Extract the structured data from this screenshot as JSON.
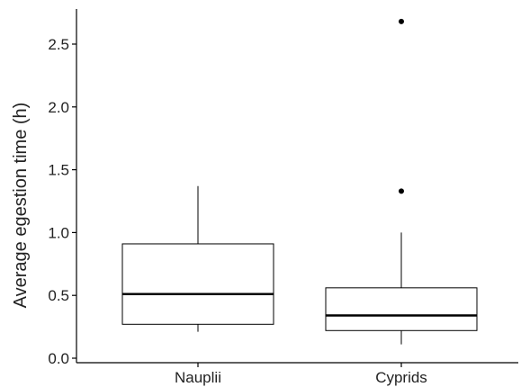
{
  "chart_data": {
    "type": "boxplot",
    "title": "",
    "xlabel": "",
    "ylabel": "Average egestion time (h)",
    "ylim": [
      0,
      2.8
    ],
    "yticks": [
      0.0,
      0.5,
      1.0,
      1.5,
      2.0,
      2.5
    ],
    "ytick_labels": [
      "0.0",
      "0.5",
      "1.0",
      "1.5",
      "2.0",
      "2.5"
    ],
    "grid": false,
    "categories": [
      "Nauplii",
      "Cyprids"
    ],
    "boxes": [
      {
        "category": "Nauplii",
        "whisker_low": 0.21,
        "q1": 0.27,
        "median": 0.51,
        "q3": 0.91,
        "whisker_high": 1.37,
        "outliers": []
      },
      {
        "category": "Cyprids",
        "whisker_low": 0.11,
        "q1": 0.22,
        "median": 0.34,
        "q3": 0.56,
        "whisker_high": 1.0,
        "outliers": [
          1.33,
          2.68
        ]
      }
    ],
    "colors": {
      "box_fill": "#ffffff",
      "stroke": "#000000",
      "median": "#000000"
    }
  }
}
